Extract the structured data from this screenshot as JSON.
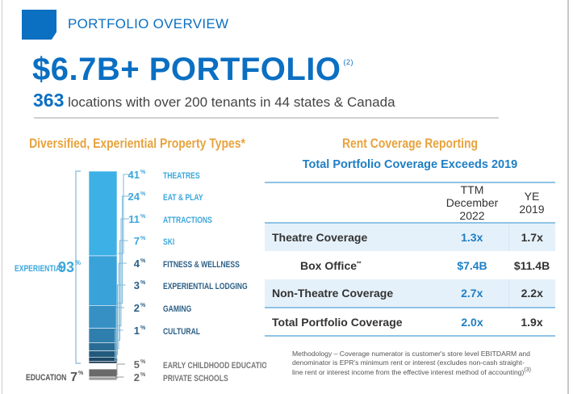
{
  "header": {
    "section": "PORTFOLIO OVERVIEW",
    "headline": "$6.7B+ PORTFOLIO",
    "headline_note": "(2)",
    "count": "363",
    "subline": "locations with over 200 tenants in 44 states & Canada",
    "brand_color": "#0b6fc2"
  },
  "chart_data": {
    "type": "bar",
    "stacked": true,
    "title": "Diversified, Experiential Property Types*",
    "groups": [
      {
        "label": "EXPERIENTIAL",
        "value": "93%"
      },
      {
        "label": "EDUCATION",
        "value": "7%"
      }
    ],
    "categories": [
      "THEATRES",
      "EAT & PLAY",
      "ATTRACTIONS",
      "SKI",
      "FITNESS & WELLNESS",
      "EXPERIENTIAL LODGING",
      "GAMING",
      "CULTURAL",
      "EARLY CHILDHOOD EDUCATION",
      "PRIVATE SCHOOLS"
    ],
    "values": [
      41,
      24,
      11,
      7,
      4,
      3,
      2,
      1,
      5,
      2
    ],
    "unit": "%",
    "colors": [
      "#3db0e6",
      "#39a2d8",
      "#3690c4",
      "#2f7fae",
      "#296d96",
      "#225a7e",
      "#1b4967",
      "#143650",
      "#6a6a6a",
      "#9a9a9a"
    ]
  },
  "rent": {
    "title": "Rent Coverage Reporting",
    "subtitle": "Total Portfolio Coverage Exceeds 2019",
    "col1": [
      "TTM December",
      "2022"
    ],
    "col2": [
      "YE",
      "2019"
    ],
    "rows": [
      {
        "label": "Theatre Coverage",
        "v1": "1.3x",
        "v2": "1.7x"
      },
      {
        "label": "Box Office",
        "note": "**",
        "v1": "$7.4B",
        "v2": "$11.4B"
      },
      {
        "label": "Non-Theatre Coverage",
        "v1": "2.7x",
        "v2": "2.2x"
      },
      {
        "label": "Total Portfolio Coverage",
        "v1": "2.0x",
        "v2": "1.9x"
      }
    ],
    "methodology": "Methodology – Coverage numerator is customer's store level EBITDARM and denominator is EPR's minimum rent or interest (excludes non-cash straight-line rent or interest income from the effective interest method of accounting)",
    "methodology_note": "(3)"
  }
}
